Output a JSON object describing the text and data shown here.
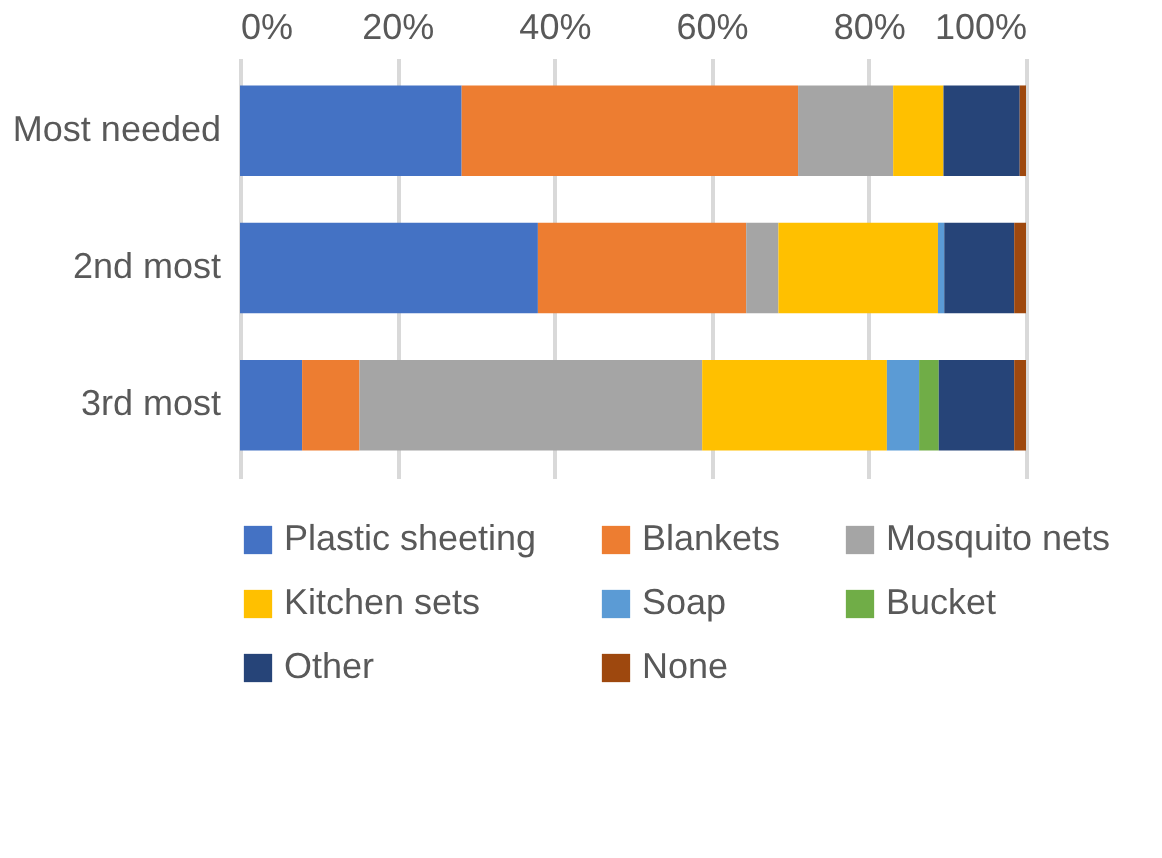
{
  "chart_data": {
    "type": "bar",
    "orientation": "horizontal",
    "stacked": true,
    "categories": [
      "Most needed",
      "2nd most",
      "3rd most"
    ],
    "series": [
      {
        "name": "Plastic sheeting",
        "color": "#4472c4",
        "values": [
          28.2,
          37.9,
          7.9
        ]
      },
      {
        "name": "Blankets",
        "color": "#ed7d31",
        "values": [
          42.8,
          26.5,
          7.3
        ]
      },
      {
        "name": "Mosquito nets",
        "color": "#a5a5a5",
        "values": [
          12.1,
          4.1,
          43.6
        ]
      },
      {
        "name": "Kitchen sets",
        "color": "#ffc000",
        "values": [
          6.4,
          20.3,
          23.5
        ]
      },
      {
        "name": "Soap",
        "color": "#5b9bd5",
        "values": [
          0,
          0.8,
          4.1
        ]
      },
      {
        "name": "Bucket",
        "color": "#70ad47",
        "values": [
          0,
          0,
          2.5
        ]
      },
      {
        "name": "Other",
        "color": "#264478",
        "values": [
          9.7,
          8.9,
          9.6
        ]
      },
      {
        "name": "None",
        "color": "#9e480e",
        "values": [
          0.8,
          1.5,
          1.5
        ]
      }
    ],
    "xlim": [
      0,
      100
    ],
    "xticks": [
      {
        "value": 0,
        "label": "0%"
      },
      {
        "value": 20,
        "label": "20%"
      },
      {
        "value": 40,
        "label": "40%"
      },
      {
        "value": 60,
        "label": "60%"
      },
      {
        "value": 80,
        "label": "80%"
      },
      {
        "value": 100,
        "label": "100%"
      }
    ],
    "grid": "x",
    "legend": "bottom"
  }
}
